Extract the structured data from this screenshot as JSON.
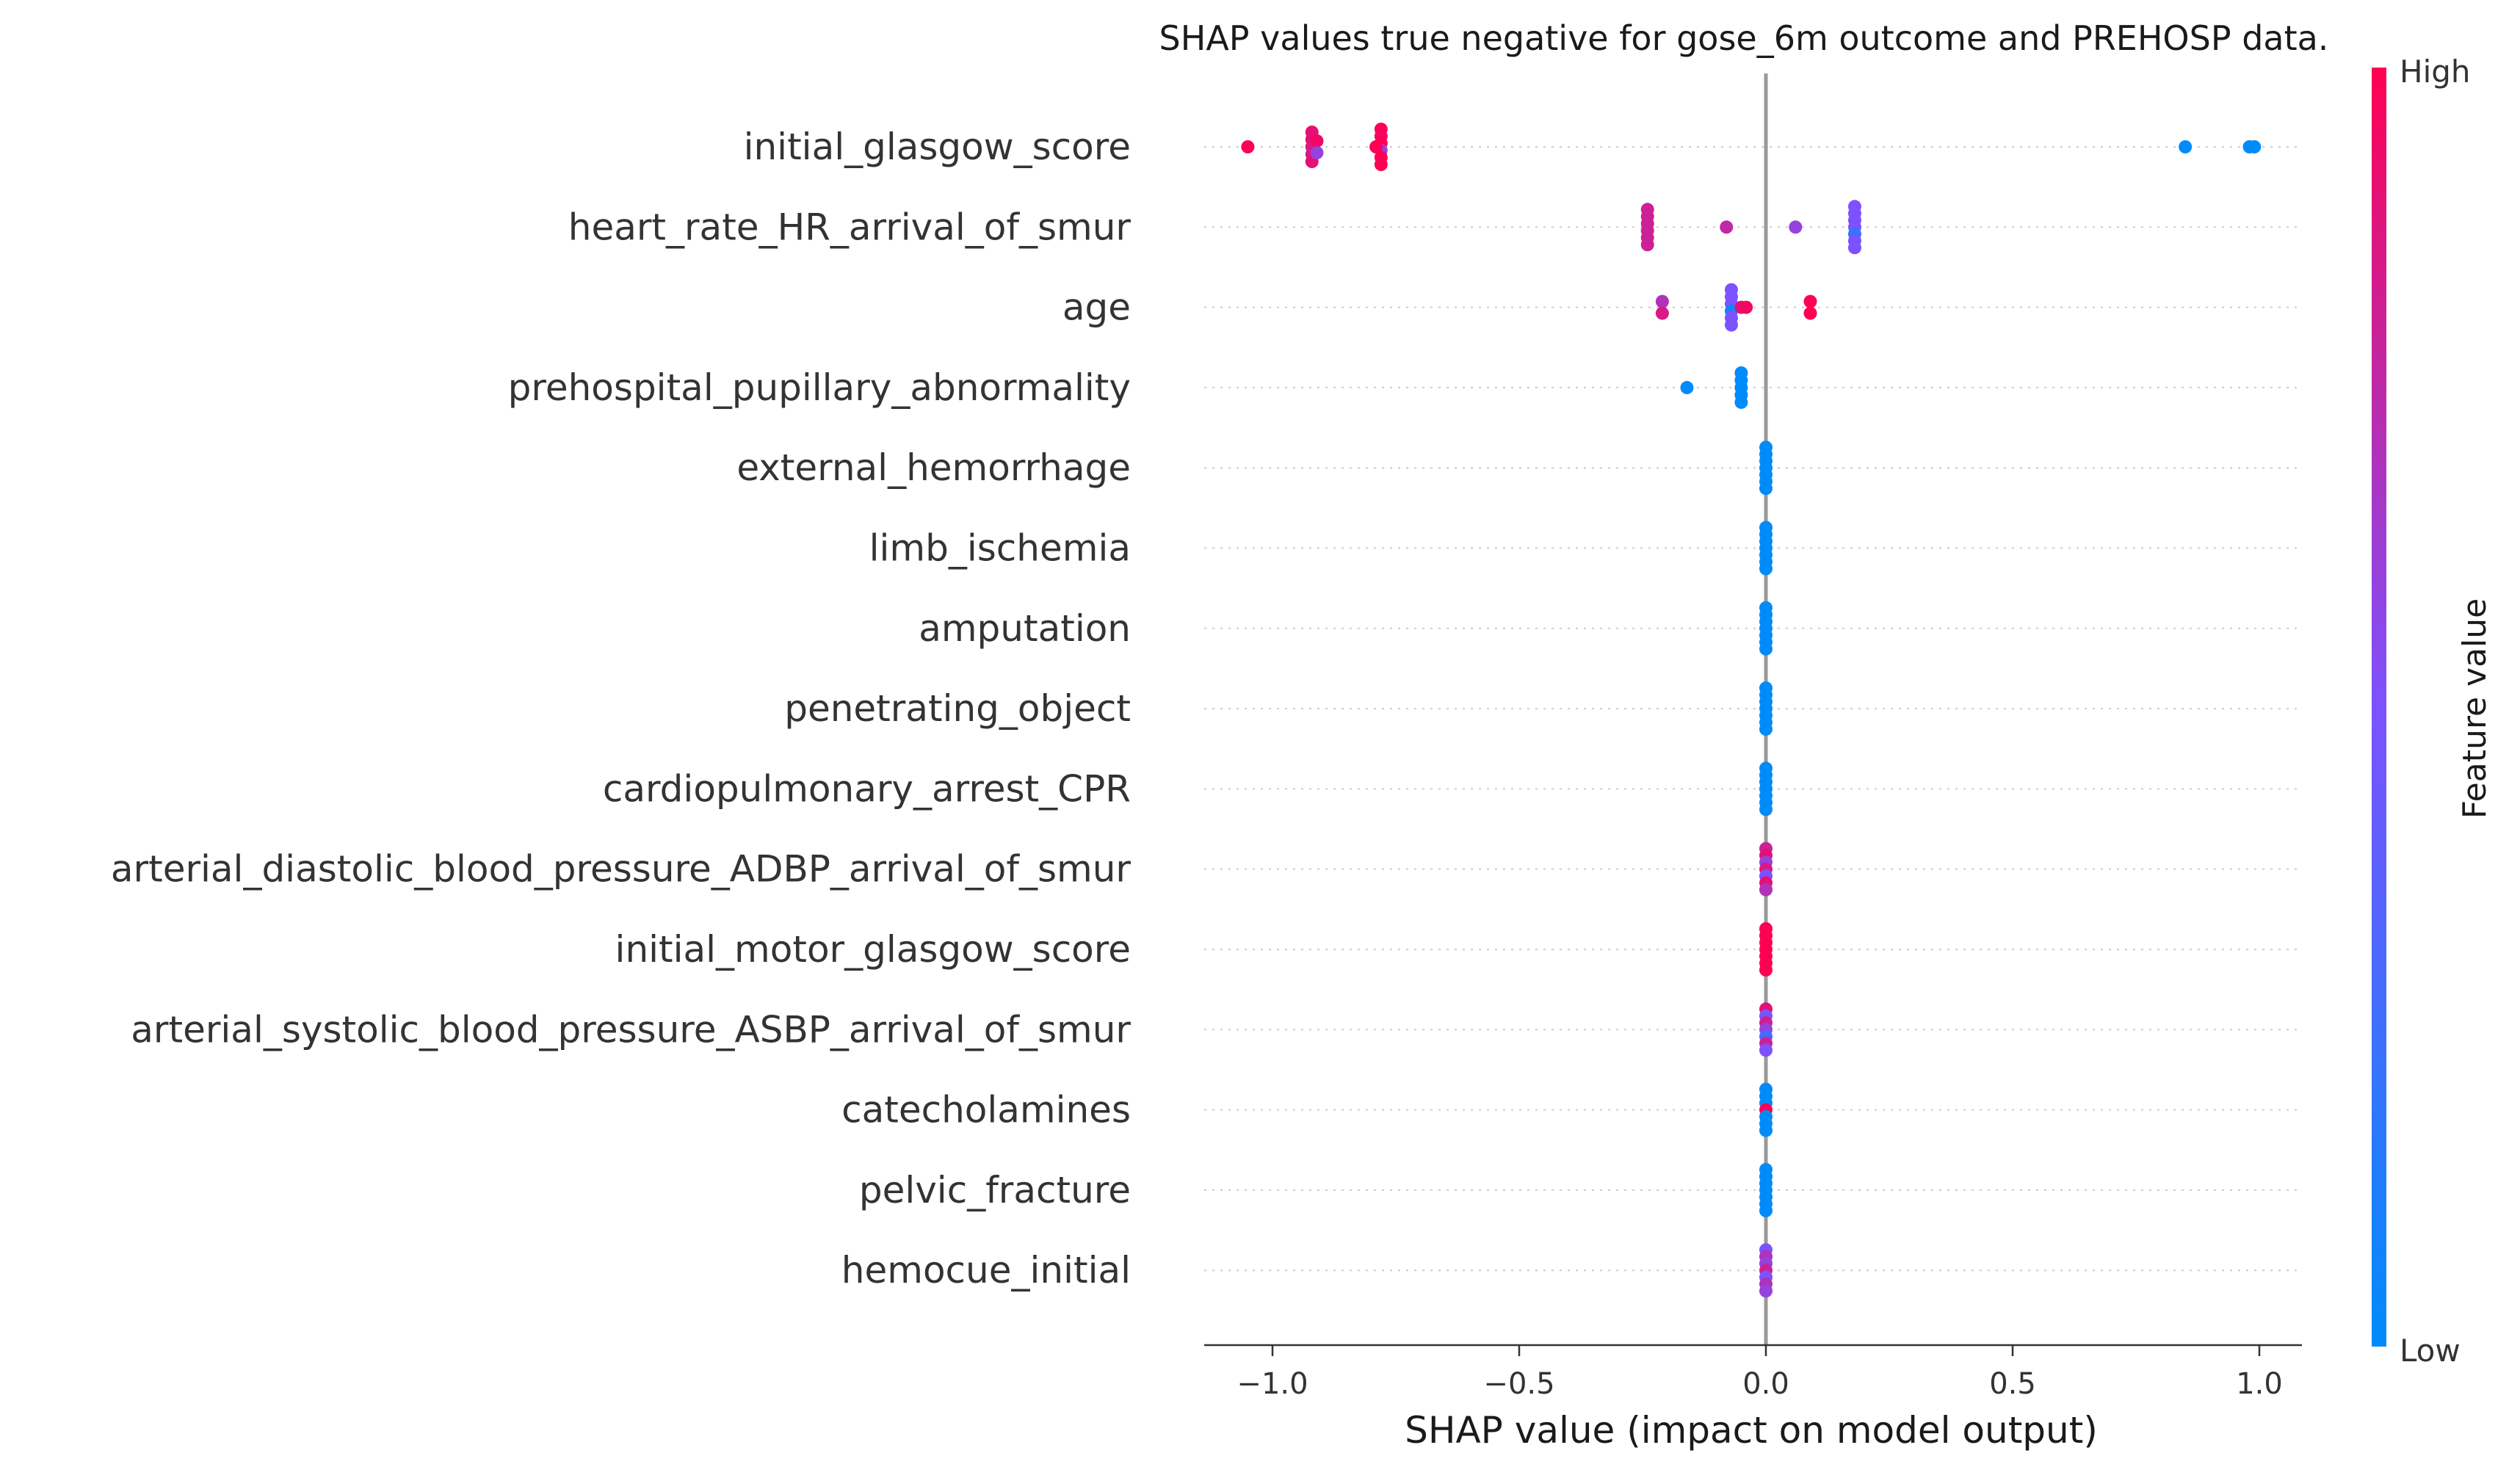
{
  "chart_data": {
    "type": "scatter",
    "title": "SHAP values true negative for gose_6m outcome and PREHOSP data.",
    "xlabel": "SHAP value (impact on model output)",
    "xlim": [
      -1.15,
      1.1
    ],
    "xticks": [
      -1.0,
      -0.5,
      0.0,
      0.5,
      1.0
    ],
    "xtick_labels": [
      "−1.0",
      "−0.5",
      "0.0",
      "0.5",
      "1.0"
    ],
    "colorbar": {
      "label": "Feature value",
      "high": "High",
      "low": "Low",
      "low_color": "#008bfb",
      "high_color": "#ff0052"
    },
    "features": [
      {
        "name": "initial_glasgow_score",
        "points": [
          {
            "x": -1.05,
            "v": 1.0
          },
          {
            "x": -0.92,
            "v": 0.9
          },
          {
            "x": -0.92,
            "v": 0.9
          },
          {
            "x": -0.92,
            "v": 0.85
          },
          {
            "x": -0.91,
            "v": 0.95
          },
          {
            "x": -0.91,
            "v": 0.6
          },
          {
            "x": -0.92,
            "v": 0.85
          },
          {
            "x": -0.92,
            "v": 0.9
          },
          {
            "x": -0.78,
            "v": 1.0
          },
          {
            "x": -0.78,
            "v": 0.95
          },
          {
            "x": -0.78,
            "v": 1.0
          },
          {
            "x": -0.78,
            "v": 0.6
          },
          {
            "x": -0.78,
            "v": 1.0
          },
          {
            "x": -0.79,
            "v": 1.0
          },
          {
            "x": -0.78,
            "v": 1.0
          },
          {
            "x": 0.85,
            "v": 0.0
          },
          {
            "x": 0.99,
            "v": 0.0
          },
          {
            "x": 0.98,
            "v": 0.0
          }
        ]
      },
      {
        "name": "heart_rate_HR_arrival_of_smur",
        "points": [
          {
            "x": -0.24,
            "v": 0.8
          },
          {
            "x": -0.24,
            "v": 0.8
          },
          {
            "x": -0.24,
            "v": 0.8
          },
          {
            "x": -0.24,
            "v": 0.8
          },
          {
            "x": -0.24,
            "v": 0.8
          },
          {
            "x": -0.24,
            "v": 0.8
          },
          {
            "x": -0.08,
            "v": 0.75
          },
          {
            "x": 0.06,
            "v": 0.6
          },
          {
            "x": 0.18,
            "v": 0.5
          },
          {
            "x": 0.18,
            "v": 0.5
          },
          {
            "x": 0.18,
            "v": 0.5
          },
          {
            "x": 0.18,
            "v": 0.5
          },
          {
            "x": 0.18,
            "v": 0.2
          },
          {
            "x": 0.18,
            "v": 0.5
          },
          {
            "x": 0.18,
            "v": 0.5
          }
        ]
      },
      {
        "name": "age",
        "points": [
          {
            "x": -0.21,
            "v": 0.7
          },
          {
            "x": -0.21,
            "v": 0.85
          },
          {
            "x": -0.07,
            "v": 0.5
          },
          {
            "x": -0.07,
            "v": 0.5
          },
          {
            "x": -0.07,
            "v": 0.5
          },
          {
            "x": -0.07,
            "v": 0.1
          },
          {
            "x": -0.07,
            "v": 0.5
          },
          {
            "x": -0.07,
            "v": 0.5
          },
          {
            "x": -0.05,
            "v": 0.9
          },
          {
            "x": -0.04,
            "v": 0.95
          },
          {
            "x": 0.09,
            "v": 1.0
          },
          {
            "x": 0.09,
            "v": 1.0
          }
        ]
      },
      {
        "name": "prehospital_pupillary_abnormality",
        "points": [
          {
            "x": -0.16,
            "v": 0.0
          },
          {
            "x": -0.05,
            "v": 0.0
          },
          {
            "x": -0.05,
            "v": 0.0
          },
          {
            "x": -0.05,
            "v": 0.0
          },
          {
            "x": -0.05,
            "v": 0.0
          },
          {
            "x": -0.05,
            "v": 0.0
          }
        ]
      },
      {
        "name": "external_hemorrhage",
        "points": [
          {
            "x": 0.0,
            "v": 0.0
          },
          {
            "x": 0.0,
            "v": 0.0
          },
          {
            "x": 0.0,
            "v": 0.0
          },
          {
            "x": 0.0,
            "v": 0.0
          },
          {
            "x": 0.0,
            "v": 0.0
          },
          {
            "x": 0.0,
            "v": 0.0
          },
          {
            "x": 0.0,
            "v": 0.0
          }
        ]
      },
      {
        "name": "limb_ischemia",
        "points": [
          {
            "x": 0.0,
            "v": 0.0
          },
          {
            "x": 0.0,
            "v": 0.0
          },
          {
            "x": 0.0,
            "v": 0.0
          },
          {
            "x": 0.0,
            "v": 0.0
          },
          {
            "x": 0.0,
            "v": 0.0
          },
          {
            "x": 0.0,
            "v": 0.0
          },
          {
            "x": 0.0,
            "v": 0.0
          }
        ]
      },
      {
        "name": "amputation",
        "points": [
          {
            "x": 0.0,
            "v": 0.0
          },
          {
            "x": 0.0,
            "v": 0.0
          },
          {
            "x": 0.0,
            "v": 0.0
          },
          {
            "x": 0.0,
            "v": 0.0
          },
          {
            "x": 0.0,
            "v": 0.0
          },
          {
            "x": 0.0,
            "v": 0.0
          },
          {
            "x": 0.0,
            "v": 0.0
          }
        ]
      },
      {
        "name": "penetrating_object",
        "points": [
          {
            "x": 0.0,
            "v": 0.0
          },
          {
            "x": 0.0,
            "v": 0.0
          },
          {
            "x": 0.0,
            "v": 0.0
          },
          {
            "x": 0.0,
            "v": 0.0
          },
          {
            "x": 0.0,
            "v": 0.0
          },
          {
            "x": 0.0,
            "v": 0.0
          },
          {
            "x": 0.0,
            "v": 0.0
          }
        ]
      },
      {
        "name": "cardiopulmonary_arrest_CPR",
        "points": [
          {
            "x": 0.0,
            "v": 0.0
          },
          {
            "x": 0.0,
            "v": 0.0
          },
          {
            "x": 0.0,
            "v": 0.0
          },
          {
            "x": 0.0,
            "v": 0.0
          },
          {
            "x": 0.0,
            "v": 0.0
          },
          {
            "x": 0.0,
            "v": 0.0
          },
          {
            "x": 0.0,
            "v": 0.0
          }
        ]
      },
      {
        "name": "arterial_diastolic_blood_pressure_ADBP_arrival_of_smur",
        "points": [
          {
            "x": 0.0,
            "v": 0.8
          },
          {
            "x": 0.0,
            "v": 0.9
          },
          {
            "x": 0.0,
            "v": 0.6
          },
          {
            "x": 0.0,
            "v": 0.85
          },
          {
            "x": 0.0,
            "v": 0.5
          },
          {
            "x": 0.0,
            "v": 0.9
          },
          {
            "x": 0.0,
            "v": 0.7
          }
        ]
      },
      {
        "name": "initial_motor_glasgow_score",
        "points": [
          {
            "x": 0.0,
            "v": 1.0
          },
          {
            "x": 0.0,
            "v": 1.0
          },
          {
            "x": 0.0,
            "v": 1.0
          },
          {
            "x": 0.0,
            "v": 1.0
          },
          {
            "x": 0.0,
            "v": 1.0
          },
          {
            "x": 0.0,
            "v": 1.0
          },
          {
            "x": 0.0,
            "v": 1.0
          }
        ]
      },
      {
        "name": "arterial_systolic_blood_pressure_ASBP_arrival_of_smur",
        "points": [
          {
            "x": 0.0,
            "v": 0.9
          },
          {
            "x": 0.0,
            "v": 0.5
          },
          {
            "x": 0.0,
            "v": 0.8
          },
          {
            "x": 0.0,
            "v": 0.6
          },
          {
            "x": 0.0,
            "v": 0.3
          },
          {
            "x": 0.0,
            "v": 0.8
          },
          {
            "x": 0.0,
            "v": 0.5
          }
        ]
      },
      {
        "name": "catecholamines",
        "points": [
          {
            "x": 0.0,
            "v": 0.0
          },
          {
            "x": 0.0,
            "v": 0.0
          },
          {
            "x": 0.0,
            "v": 0.0
          },
          {
            "x": 0.0,
            "v": 1.0
          },
          {
            "x": 0.0,
            "v": 0.0
          },
          {
            "x": 0.0,
            "v": 0.0
          },
          {
            "x": 0.0,
            "v": 0.0
          }
        ]
      },
      {
        "name": "pelvic_fracture",
        "points": [
          {
            "x": 0.0,
            "v": 0.0
          },
          {
            "x": 0.0,
            "v": 0.0
          },
          {
            "x": 0.0,
            "v": 0.0
          },
          {
            "x": 0.0,
            "v": 0.0
          },
          {
            "x": 0.0,
            "v": 0.0
          },
          {
            "x": 0.0,
            "v": 0.0
          },
          {
            "x": 0.0,
            "v": 0.0
          }
        ]
      },
      {
        "name": "hemocue_initial",
        "points": [
          {
            "x": 0.0,
            "v": 0.5
          },
          {
            "x": 0.0,
            "v": 0.7
          },
          {
            "x": 0.0,
            "v": 0.6
          },
          {
            "x": 0.0,
            "v": 0.8
          },
          {
            "x": 0.0,
            "v": 0.5
          },
          {
            "x": 0.0,
            "v": 0.7
          },
          {
            "x": 0.0,
            "v": 0.6
          }
        ]
      }
    ]
  }
}
